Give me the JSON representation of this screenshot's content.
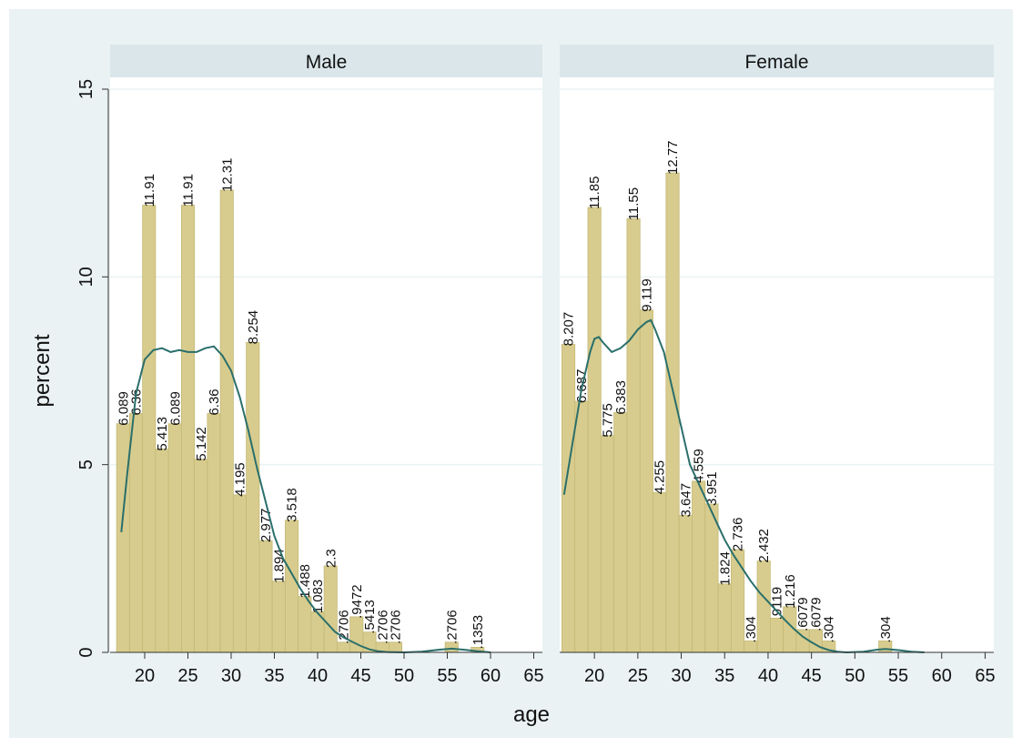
{
  "colors": {
    "outer_background": "#eaf2f3",
    "plot_background": "#ffffff",
    "strip_background": "#dae6ea",
    "bar_fill": "#d7cc8e",
    "bar_stroke": "#c4b874",
    "density_line": "#2a6f6b",
    "grid": "#eaf2f3"
  },
  "chart_data": {
    "type": "bar",
    "ylabel": "percent",
    "xlabel": "age",
    "ylim": [
      0,
      15
    ],
    "xlim": [
      16,
      66
    ],
    "yticks": [
      "0",
      "5",
      "10",
      "15"
    ],
    "xticks": [
      "20",
      "25",
      "30",
      "35",
      "40",
      "45",
      "50",
      "55",
      "60",
      "65"
    ],
    "grid": true,
    "legend": "none",
    "panels": [
      {
        "title": "Male",
        "bars": [
          {
            "x": 17.5,
            "value": 6.089,
            "label": "6.089"
          },
          {
            "x": 19,
            "value": 6.36,
            "label": "6.36"
          },
          {
            "x": 20.5,
            "value": 11.91,
            "label": "11.91"
          },
          {
            "x": 22,
            "value": 5.413,
            "label": "5.413"
          },
          {
            "x": 23.5,
            "value": 6.089,
            "label": "6.089"
          },
          {
            "x": 25,
            "value": 11.91,
            "label": "11.91"
          },
          {
            "x": 26.5,
            "value": 5.142,
            "label": "5.142"
          },
          {
            "x": 28,
            "value": 6.36,
            "label": "6.36"
          },
          {
            "x": 29.5,
            "value": 12.31,
            "label": "12.31"
          },
          {
            "x": 31,
            "value": 4.195,
            "label": "4.195"
          },
          {
            "x": 32.5,
            "value": 8.254,
            "label": "8.254"
          },
          {
            "x": 34,
            "value": 2.977,
            "label": "2.977"
          },
          {
            "x": 35.5,
            "value": 1.894,
            "label": "1.894"
          },
          {
            "x": 37,
            "value": 3.518,
            "label": "3.518"
          },
          {
            "x": 38.5,
            "value": 1.488,
            "label": "1.488"
          },
          {
            "x": 40,
            "value": 1.083,
            "label": "1.083"
          },
          {
            "x": 41.5,
            "value": 2.3,
            "label": "2.3"
          },
          {
            "x": 43,
            "value": 0.2706,
            "label": ".2706"
          },
          {
            "x": 44.5,
            "value": 0.9472,
            "label": ".9472"
          },
          {
            "x": 46,
            "value": 0.5413,
            "label": ".5413"
          },
          {
            "x": 47.5,
            "value": 0.2706,
            "label": ".2706"
          },
          {
            "x": 49,
            "value": 0.2706,
            "label": ".2706"
          },
          {
            "x": 55.5,
            "value": 0.2706,
            "label": ".2706"
          },
          {
            "x": 58.5,
            "value": 0.1353,
            "label": ".1353"
          }
        ],
        "density": [
          [
            17.3,
            3.2
          ],
          [
            18,
            4.8
          ],
          [
            19,
            6.9
          ],
          [
            20,
            7.8
          ],
          [
            21,
            8.05
          ],
          [
            22,
            8.1
          ],
          [
            23,
            8.0
          ],
          [
            24,
            8.05
          ],
          [
            25,
            8.0
          ],
          [
            26,
            8.0
          ],
          [
            27,
            8.1
          ],
          [
            28,
            8.15
          ],
          [
            29,
            7.9
          ],
          [
            30,
            7.5
          ],
          [
            31,
            6.8
          ],
          [
            32,
            5.9
          ],
          [
            33,
            4.9
          ],
          [
            34,
            4.0
          ],
          [
            35,
            3.1
          ],
          [
            36,
            2.5
          ],
          [
            37,
            2.1
          ],
          [
            38,
            1.7
          ],
          [
            39,
            1.35
          ],
          [
            40,
            1.05
          ],
          [
            41,
            0.8
          ],
          [
            42,
            0.55
          ],
          [
            43,
            0.4
          ],
          [
            44,
            0.28
          ],
          [
            45,
            0.17
          ],
          [
            46,
            0.08
          ],
          [
            47,
            0.03
          ],
          [
            48,
            0.01
          ],
          [
            50,
            0.0
          ],
          [
            52,
            0.02
          ],
          [
            54,
            0.07
          ],
          [
            55.5,
            0.1
          ],
          [
            57,
            0.07
          ],
          [
            58.5,
            0.03
          ],
          [
            60,
            0.0
          ]
        ]
      },
      {
        "title": "Female",
        "bars": [
          {
            "x": 17,
            "value": 8.207,
            "label": "8.207"
          },
          {
            "x": 18.5,
            "value": 6.687,
            "label": "6.687"
          },
          {
            "x": 20,
            "value": 11.85,
            "label": "11.85"
          },
          {
            "x": 21.5,
            "value": 5.775,
            "label": "5.775"
          },
          {
            "x": 23,
            "value": 6.383,
            "label": "6.383"
          },
          {
            "x": 24.5,
            "value": 11.55,
            "label": "11.55"
          },
          {
            "x": 26,
            "value": 9.119,
            "label": "9.119"
          },
          {
            "x": 27.5,
            "value": 4.255,
            "label": "4.255"
          },
          {
            "x": 29,
            "value": 12.77,
            "label": "12.77"
          },
          {
            "x": 30.5,
            "value": 3.647,
            "label": "3.647"
          },
          {
            "x": 32,
            "value": 4.559,
            "label": "4.559"
          },
          {
            "x": 33.5,
            "value": 3.951,
            "label": "3.951"
          },
          {
            "x": 35,
            "value": 1.824,
            "label": "1.824"
          },
          {
            "x": 36.5,
            "value": 2.736,
            "label": "2.736"
          },
          {
            "x": 38,
            "value": 0.304,
            "label": ".304"
          },
          {
            "x": 39.5,
            "value": 2.432,
            "label": "2.432"
          },
          {
            "x": 41,
            "value": 0.9119,
            "label": ".9119"
          },
          {
            "x": 42.5,
            "value": 1.216,
            "label": "1.216"
          },
          {
            "x": 44,
            "value": 0.6079,
            "label": ".6079"
          },
          {
            "x": 45.5,
            "value": 0.6079,
            "label": ".6079"
          },
          {
            "x": 47,
            "value": 0.304,
            "label": ".304"
          },
          {
            "x": 53.5,
            "value": 0.304,
            "label": ".304"
          }
        ],
        "density": [
          [
            16.5,
            4.2
          ],
          [
            17.5,
            5.6
          ],
          [
            18.5,
            7.0
          ],
          [
            19.5,
            8.0
          ],
          [
            20,
            8.35
          ],
          [
            20.5,
            8.4
          ],
          [
            21,
            8.25
          ],
          [
            22,
            8.0
          ],
          [
            23,
            8.1
          ],
          [
            24,
            8.3
          ],
          [
            25,
            8.6
          ],
          [
            26,
            8.8
          ],
          [
            26.5,
            8.85
          ],
          [
            27,
            8.6
          ],
          [
            28,
            8.0
          ],
          [
            29,
            7.0
          ],
          [
            30,
            6.0
          ],
          [
            31,
            5.0
          ],
          [
            32,
            4.5
          ],
          [
            33,
            4.0
          ],
          [
            34,
            3.5
          ],
          [
            35,
            3.0
          ],
          [
            36,
            2.6
          ],
          [
            37,
            2.25
          ],
          [
            38,
            1.9
          ],
          [
            39,
            1.6
          ],
          [
            40,
            1.35
          ],
          [
            41,
            1.1
          ],
          [
            42,
            0.85
          ],
          [
            43,
            0.62
          ],
          [
            44,
            0.42
          ],
          [
            45,
            0.27
          ],
          [
            46,
            0.14
          ],
          [
            47,
            0.06
          ],
          [
            48,
            0.02
          ],
          [
            49,
            0.0
          ],
          [
            51,
            0.02
          ],
          [
            52.5,
            0.07
          ],
          [
            53.5,
            0.09
          ],
          [
            55,
            0.06
          ],
          [
            56.5,
            0.02
          ],
          [
            58,
            0.0
          ]
        ]
      }
    ]
  }
}
